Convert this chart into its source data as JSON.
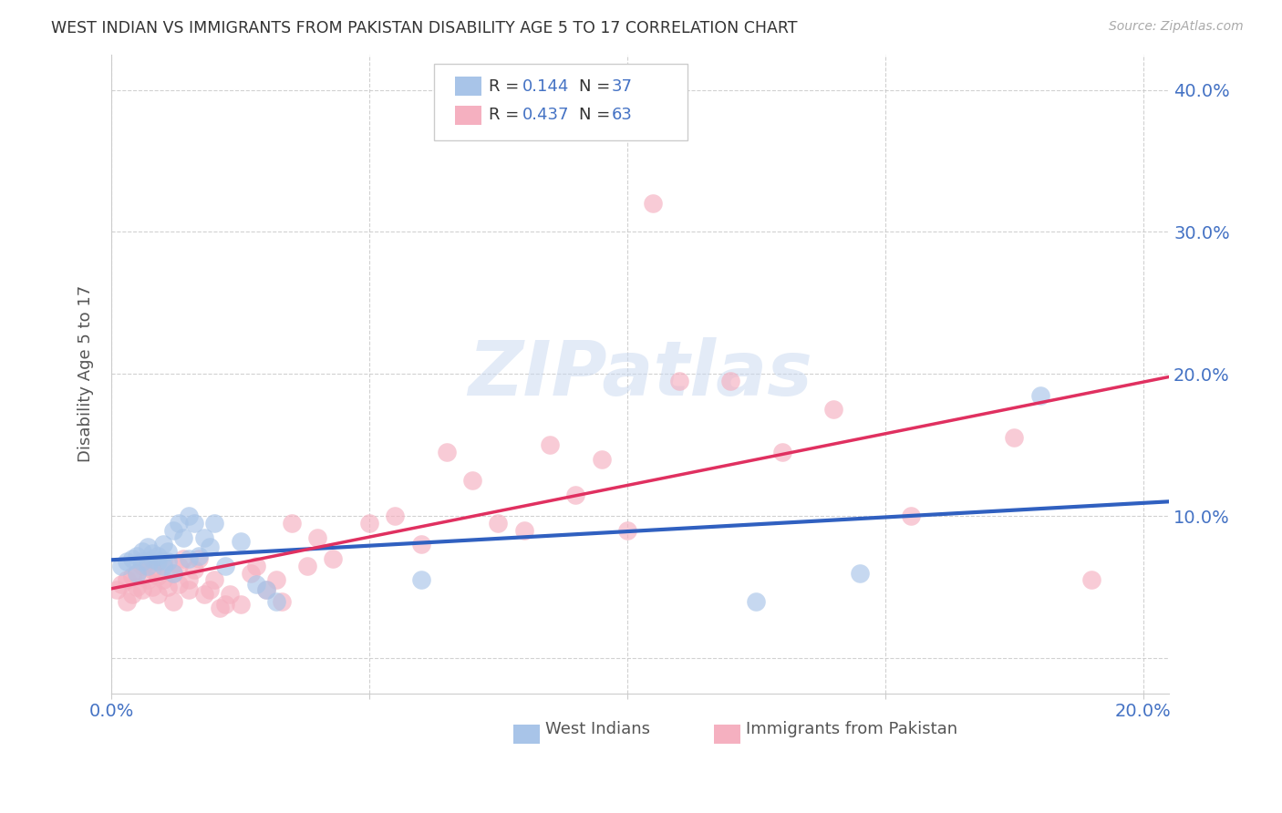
{
  "title": "WEST INDIAN VS IMMIGRANTS FROM PAKISTAN DISABILITY AGE 5 TO 17 CORRELATION CHART",
  "source": "Source: ZipAtlas.com",
  "ylabel": "Disability Age 5 to 17",
  "xlim": [
    0.0,
    0.205
  ],
  "ylim": [
    -0.025,
    0.425
  ],
  "xticks": [
    0.0,
    0.05,
    0.1,
    0.15,
    0.2
  ],
  "xtick_labels": [
    "0.0%",
    "",
    "",
    "",
    "20.0%"
  ],
  "yticks": [
    0.0,
    0.1,
    0.2,
    0.3,
    0.4
  ],
  "ytick_labels": [
    "",
    "10.0%",
    "20.0%",
    "30.0%",
    "40.0%"
  ],
  "legend1_R": "0.144",
  "legend1_N": "37",
  "legend2_R": "0.437",
  "legend2_N": "63",
  "blue_color": "#a8c4e8",
  "pink_color": "#f5b0c0",
  "blue_line_color": "#3060c0",
  "pink_line_color": "#e03060",
  "watermark_text": "ZIPatlas",
  "watermark_color": "#c8d8f0",
  "west_indian_x": [
    0.002,
    0.003,
    0.004,
    0.005,
    0.005,
    0.006,
    0.006,
    0.007,
    0.007,
    0.008,
    0.008,
    0.009,
    0.009,
    0.01,
    0.01,
    0.011,
    0.011,
    0.012,
    0.012,
    0.013,
    0.014,
    0.015,
    0.015,
    0.016,
    0.017,
    0.018,
    0.019,
    0.02,
    0.022,
    0.025,
    0.028,
    0.03,
    0.032,
    0.06,
    0.125,
    0.145,
    0.18
  ],
  "west_indian_y": [
    0.065,
    0.068,
    0.07,
    0.072,
    0.06,
    0.075,
    0.068,
    0.065,
    0.078,
    0.07,
    0.074,
    0.068,
    0.072,
    0.065,
    0.08,
    0.075,
    0.068,
    0.09,
    0.06,
    0.095,
    0.085,
    0.07,
    0.1,
    0.095,
    0.072,
    0.085,
    0.078,
    0.095,
    0.065,
    0.082,
    0.052,
    0.048,
    0.04,
    0.055,
    0.04,
    0.06,
    0.185
  ],
  "pakistan_x": [
    0.001,
    0.002,
    0.003,
    0.003,
    0.004,
    0.004,
    0.005,
    0.005,
    0.006,
    0.006,
    0.007,
    0.007,
    0.008,
    0.008,
    0.009,
    0.009,
    0.01,
    0.01,
    0.011,
    0.012,
    0.012,
    0.013,
    0.013,
    0.014,
    0.015,
    0.015,
    0.016,
    0.017,
    0.018,
    0.019,
    0.02,
    0.021,
    0.022,
    0.023,
    0.025,
    0.027,
    0.028,
    0.03,
    0.032,
    0.033,
    0.035,
    0.038,
    0.04,
    0.043,
    0.05,
    0.055,
    0.06,
    0.065,
    0.07,
    0.075,
    0.08,
    0.085,
    0.09,
    0.095,
    0.1,
    0.105,
    0.11,
    0.12,
    0.13,
    0.14,
    0.155,
    0.175,
    0.19
  ],
  "pakistan_y": [
    0.048,
    0.052,
    0.055,
    0.04,
    0.058,
    0.045,
    0.05,
    0.06,
    0.048,
    0.065,
    0.055,
    0.068,
    0.05,
    0.062,
    0.058,
    0.045,
    0.055,
    0.068,
    0.05,
    0.06,
    0.04,
    0.065,
    0.052,
    0.07,
    0.055,
    0.048,
    0.062,
    0.07,
    0.045,
    0.048,
    0.055,
    0.035,
    0.038,
    0.045,
    0.038,
    0.06,
    0.065,
    0.048,
    0.055,
    0.04,
    0.095,
    0.065,
    0.085,
    0.07,
    0.095,
    0.1,
    0.08,
    0.145,
    0.125,
    0.095,
    0.09,
    0.15,
    0.115,
    0.14,
    0.09,
    0.32,
    0.195,
    0.195,
    0.145,
    0.175,
    0.1,
    0.155,
    0.055
  ]
}
